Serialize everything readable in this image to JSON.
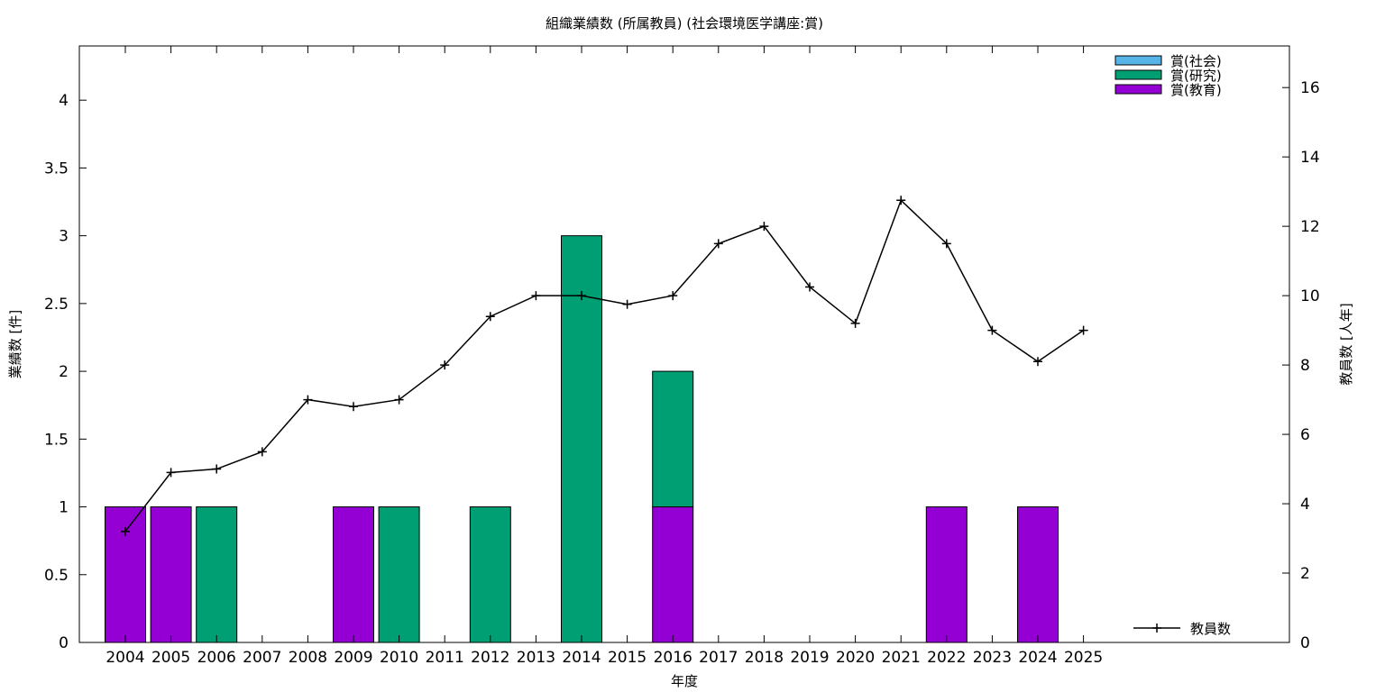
{
  "chart_data": {
    "type": "bar",
    "title": "組織業績数 (所属教員) (社会環境医学講座:賞)",
    "xlabel": "年度",
    "ylabel": "業績数 [件]",
    "y2label": "教員数 [人年]",
    "categories": [
      "2004",
      "2005",
      "2006",
      "2007",
      "2008",
      "2009",
      "2010",
      "2011",
      "2012",
      "2013",
      "2014",
      "2015",
      "2016",
      "2017",
      "2018",
      "2019",
      "2020",
      "2021",
      "2022",
      "2023",
      "2024",
      "2025"
    ],
    "ylim": [
      0,
      4.4
    ],
    "yticks": [
      "0",
      "0.5",
      "1",
      "1.5",
      "2",
      "2.5",
      "3",
      "3.5",
      "4"
    ],
    "y2lim": [
      0,
      17.2
    ],
    "y2ticks": [
      "0",
      "2",
      "4",
      "6",
      "8",
      "10",
      "12",
      "14",
      "16"
    ],
    "stacked": true,
    "series": [
      {
        "name": "賞(教育)",
        "color": "#9400d3",
        "values": [
          1,
          1,
          0,
          0,
          0,
          1,
          0,
          0,
          0,
          0,
          0,
          0,
          1,
          0,
          0,
          0,
          0,
          0,
          1,
          0,
          1,
          0
        ]
      },
      {
        "name": "賞(研究)",
        "color": "#009e73",
        "values": [
          0,
          0,
          1,
          0,
          0,
          0,
          1,
          0,
          1,
          0,
          3,
          0,
          1,
          0,
          0,
          0,
          0,
          0,
          0,
          0,
          0,
          0
        ]
      },
      {
        "name": "賞(社会)",
        "color": "#56b4e9",
        "values": [
          0,
          0,
          0,
          0,
          0,
          0,
          0,
          0,
          0,
          0,
          0,
          0,
          0,
          0,
          0,
          0,
          0,
          0,
          0,
          0,
          0,
          0
        ]
      }
    ],
    "legend_order": [
      "賞(社会)",
      "賞(研究)",
      "賞(教育)"
    ],
    "legend_position": "top-right",
    "line_series": {
      "name": "教員数",
      "axis": "right",
      "color": "#000000",
      "marker": "plus",
      "values": [
        3.2,
        4.9,
        5.0,
        5.5,
        7.0,
        6.8,
        7.0,
        8.0,
        9.4,
        10.0,
        10.0,
        9.75,
        10.0,
        11.5,
        12.0,
        10.25,
        9.2,
        12.75,
        11.5,
        9.0,
        8.1,
        9.0
      ]
    },
    "line_legend_position": "bottom-right",
    "grid": false
  }
}
